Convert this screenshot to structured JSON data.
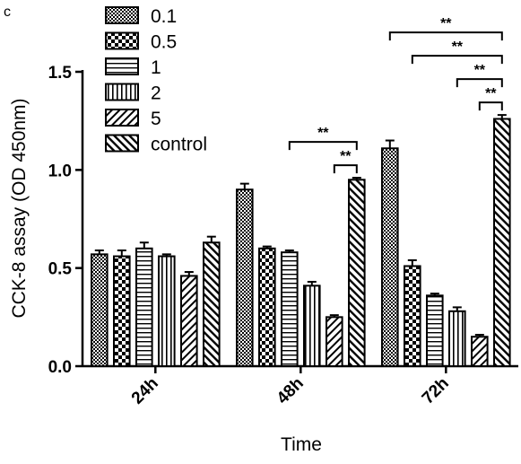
{
  "panel_label": "c",
  "chart_data": {
    "type": "bar",
    "categories": [
      "24h",
      "48h",
      "72h"
    ],
    "xlabel": "Time",
    "ylabel": "CCK-8 assay (OD 450nm)",
    "ylim": [
      0,
      1.5
    ],
    "yticks": [
      "0.0",
      "0.5",
      "1.0",
      "1.5"
    ],
    "legend_position": "top-left",
    "series": [
      {
        "name": "0.1",
        "pattern": "checker-fine",
        "values": [
          0.57,
          0.9,
          1.11
        ],
        "errors": [
          0.02,
          0.03,
          0.04
        ]
      },
      {
        "name": "0.5",
        "pattern": "checker-coarse",
        "values": [
          0.56,
          0.6,
          0.51
        ],
        "errors": [
          0.03,
          0.01,
          0.03
        ]
      },
      {
        "name": "1",
        "pattern": "horizontal-lines",
        "values": [
          0.6,
          0.58,
          0.36
        ],
        "errors": [
          0.03,
          0.01,
          0.01
        ]
      },
      {
        "name": "2",
        "pattern": "vertical-lines",
        "values": [
          0.56,
          0.41,
          0.28
        ],
        "errors": [
          0.01,
          0.02,
          0.02
        ]
      },
      {
        "name": "5",
        "pattern": "diagonal-up",
        "values": [
          0.46,
          0.25,
          0.15
        ],
        "errors": [
          0.02,
          0.01,
          0.01
        ]
      },
      {
        "name": "control",
        "pattern": "diagonal-down",
        "values": [
          0.63,
          0.95,
          1.26
        ],
        "errors": [
          0.03,
          0.01,
          0.02
        ]
      }
    ],
    "significance": [
      {
        "category": "48h",
        "from_series": "1",
        "to_series": "control",
        "label": "**"
      },
      {
        "category": "48h",
        "from_series": "5",
        "to_series": "control",
        "label": "**"
      },
      {
        "category": "72h",
        "from_series": "0.1",
        "to_series": "control",
        "label": "**"
      },
      {
        "category": "72h",
        "from_series": "0.5",
        "to_series": "control",
        "label": "**"
      },
      {
        "category": "72h",
        "from_series": "2",
        "to_series": "control",
        "label": "**"
      },
      {
        "category": "72h",
        "from_series": "5",
        "to_series": "control",
        "label": "**"
      }
    ]
  }
}
